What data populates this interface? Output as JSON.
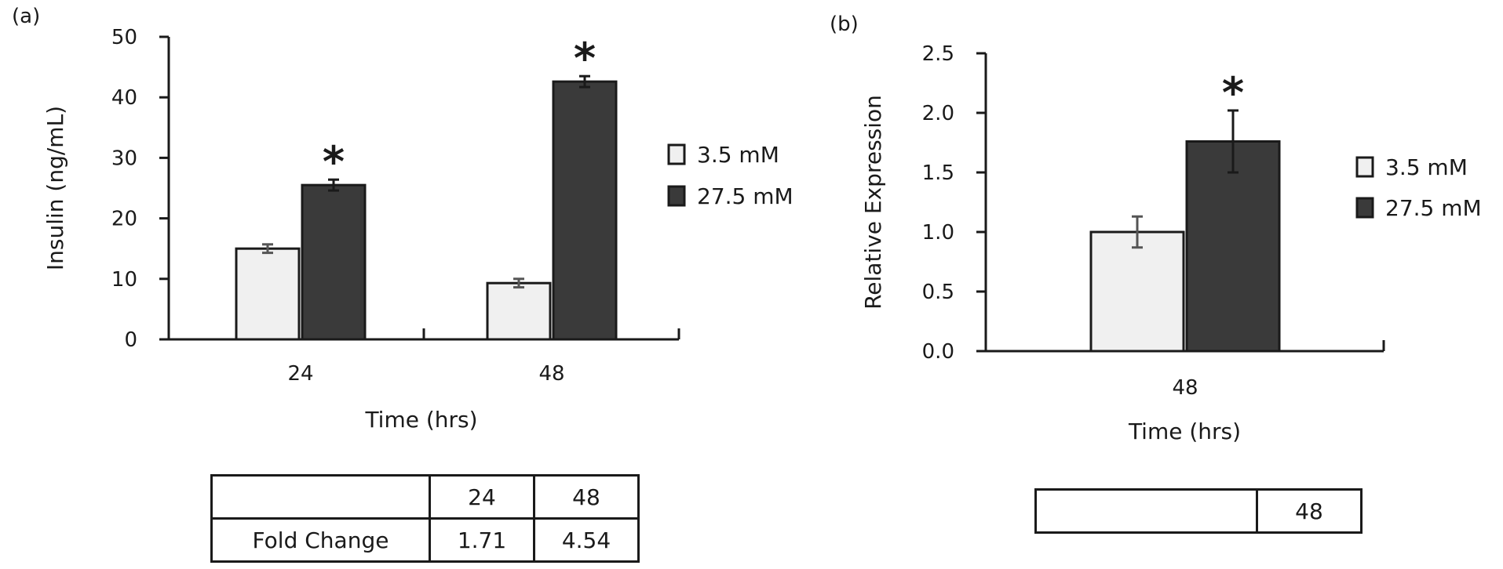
{
  "colors": {
    "low": "#f0f0f0",
    "high": "#3a3a3a",
    "stroke": "#1a1a1a"
  },
  "chart_data": [
    {
      "panel_label": "(a)",
      "type": "bar",
      "categories": [
        "24",
        "48"
      ],
      "series": [
        {
          "name": "3.5 mM",
          "values": [
            15.0,
            9.3
          ],
          "errors": [
            0.7,
            0.7
          ]
        },
        {
          "name": "27.5 mM",
          "values": [
            25.5,
            42.6
          ],
          "errors": [
            0.9,
            0.9
          ]
        }
      ],
      "significance": [
        "*",
        "*"
      ],
      "xlabel": "Time (hrs)",
      "ylabel": "Insulin (ng/mL)",
      "ylim": [
        0,
        50
      ],
      "yticks": [
        "0",
        "10",
        "20",
        "30",
        "40",
        "50"
      ],
      "grid": false,
      "legend": "right"
    },
    {
      "panel_label": "(b)",
      "type": "bar",
      "categories": [
        "48"
      ],
      "series": [
        {
          "name": "3.5 mM",
          "values": [
            1.0
          ],
          "errors": [
            0.13
          ]
        },
        {
          "name": "27.5 mM",
          "values": [
            1.76
          ],
          "errors": [
            0.26
          ]
        }
      ],
      "significance": [
        "*"
      ],
      "xlabel": "Time (hrs)",
      "ylabel": "Relative Expression",
      "ylim": [
        0,
        2.5
      ],
      "yticks": [
        "0.0",
        "0.5",
        "1.0",
        "1.5",
        "2.0",
        "2.5"
      ],
      "grid": false,
      "legend": "right"
    }
  ],
  "tables": {
    "a": {
      "header": [
        "",
        "24",
        "48"
      ],
      "rows": [
        [
          "Fold Change",
          "1.71",
          "4.54"
        ]
      ]
    },
    "b": {
      "header": [
        "",
        "48"
      ]
    }
  }
}
